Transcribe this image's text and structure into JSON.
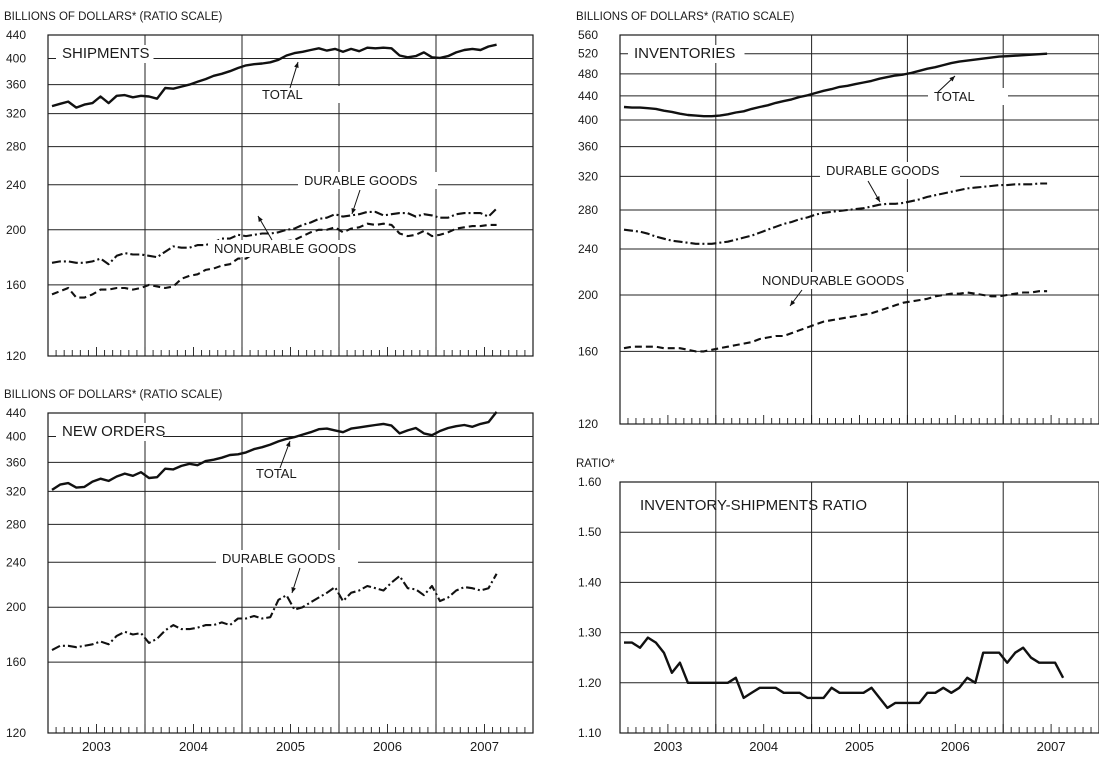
{
  "chart_data": [
    {
      "id": "shipments",
      "type": "line",
      "header": "BILLIONS OF DOLLARS* (RATIO SCALE)",
      "title": "SHIPMENTS",
      "scale": "log",
      "ylim": [
        120,
        440
      ],
      "yticks": [
        "440",
        "400",
        "360",
        "320",
        "280",
        "240",
        "200",
        "160",
        "120"
      ],
      "grid": true,
      "series": [
        {
          "name": "TOTAL",
          "style": "solid",
          "start_month": 1,
          "values": [
            330,
            333,
            336,
            328,
            332,
            334,
            343,
            334,
            344,
            345,
            342,
            344,
            343,
            340,
            355,
            354,
            357,
            360,
            364,
            368,
            373,
            376,
            380,
            385,
            389,
            391,
            392,
            394,
            398,
            405,
            409,
            411,
            414,
            417,
            413,
            416,
            411,
            416,
            412,
            418,
            417,
            418,
            417,
            405,
            402,
            404,
            410,
            402,
            401,
            404,
            410,
            414,
            416,
            414,
            420,
            423
          ]
        },
        {
          "name": "DURABLE GOODS",
          "style": "dashdot",
          "start_month": 1,
          "values": [
            175,
            176,
            176,
            175,
            175,
            176,
            178,
            174,
            180,
            182,
            181,
            181,
            180,
            179,
            183,
            187,
            186,
            186,
            188,
            188,
            190,
            193,
            193,
            196,
            195,
            196,
            197,
            197,
            198,
            200,
            201,
            204,
            206,
            209,
            210,
            213,
            211,
            212,
            213,
            215,
            215,
            212,
            213,
            214,
            214,
            211,
            213,
            212,
            210,
            210,
            213,
            214,
            214,
            214,
            211,
            218
          ]
        },
        {
          "name": "NONDURABLE GOODS",
          "style": "dashed",
          "start_month": 1,
          "values": [
            154,
            156,
            158,
            152,
            152,
            154,
            157,
            157,
            158,
            158,
            157,
            158,
            160,
            159,
            158,
            159,
            164,
            166,
            167,
            170,
            171,
            173,
            174,
            178,
            178,
            182,
            184,
            186,
            188,
            191,
            192,
            195,
            198,
            200,
            200,
            202,
            198,
            201,
            202,
            205,
            204,
            205,
            204,
            197,
            195,
            196,
            199,
            195,
            196,
            198,
            201,
            202,
            203,
            203,
            204,
            204
          ]
        }
      ],
      "annotations": [
        "TOTAL",
        "DURABLE GOODS",
        "NONDURABLE GOODS"
      ]
    },
    {
      "id": "new_orders",
      "type": "line",
      "header": "BILLIONS OF DOLLARS* (RATIO SCALE)",
      "title": "NEW ORDERS",
      "scale": "log",
      "ylim": [
        120,
        440
      ],
      "yticks": [
        "440",
        "400",
        "360",
        "320",
        "280",
        "240",
        "200",
        "160",
        "120"
      ],
      "grid": true,
      "series": [
        {
          "name": "TOTAL",
          "style": "solid",
          "start_month": 1,
          "values": [
            322,
            329,
            331,
            325,
            326,
            333,
            337,
            334,
            340,
            344,
            341,
            346,
            338,
            339,
            351,
            350,
            355,
            358,
            356,
            362,
            364,
            367,
            371,
            372,
            375,
            380,
            383,
            387,
            392,
            396,
            399,
            403,
            407,
            412,
            413,
            410,
            407,
            413,
            415,
            417,
            419,
            421,
            418,
            405,
            410,
            414,
            405,
            402,
            409,
            414,
            417,
            419,
            416,
            421,
            424,
            442
          ]
        },
        {
          "name": "DURABLE GOODS",
          "style": "dashdot",
          "start_month": 1,
          "values": [
            168,
            171,
            171,
            170,
            171,
            172,
            174,
            172,
            178,
            181,
            179,
            180,
            173,
            176,
            182,
            186,
            183,
            183,
            184,
            186,
            186,
            188,
            186,
            191,
            191,
            193,
            191,
            192,
            206,
            210,
            198,
            200,
            204,
            208,
            212,
            217,
            205,
            212,
            214,
            218,
            216,
            214,
            221,
            227,
            216,
            215,
            210,
            218,
            205,
            208,
            214,
            217,
            216,
            214,
            216,
            229
          ]
        }
      ],
      "annotations": [
        "TOTAL",
        "DURABLE GOODS"
      ]
    },
    {
      "id": "inventories",
      "type": "line",
      "header": "BILLIONS OF DOLLARS* (RATIO SCALE)",
      "title": "INVENTORIES",
      "scale": "log",
      "ylim": [
        120,
        560
      ],
      "yticks": [
        "560",
        "520",
        "480",
        "440",
        "400",
        "360",
        "320",
        "280",
        "240",
        "200",
        "160",
        "120"
      ],
      "grid": true,
      "series": [
        {
          "name": "TOTAL",
          "style": "solid",
          "start_month": 1,
          "values": [
            421,
            420,
            420,
            419,
            418,
            415,
            413,
            410,
            408,
            407,
            406,
            406,
            407,
            409,
            412,
            414,
            418,
            421,
            424,
            428,
            431,
            434,
            438,
            441,
            445,
            449,
            452,
            456,
            458,
            461,
            464,
            467,
            471,
            474,
            477,
            479,
            482,
            486,
            490,
            493,
            497,
            501,
            504,
            506,
            508,
            510,
            512,
            514,
            515,
            516,
            517,
            518,
            519,
            520
          ]
        },
        {
          "name": "DURABLE GOODS",
          "style": "dashdot",
          "start_month": 1,
          "values": [
            259,
            258,
            257,
            255,
            252,
            250,
            248,
            247,
            246,
            245,
            245,
            245,
            246,
            247,
            249,
            251,
            253,
            256,
            259,
            262,
            265,
            267,
            270,
            272,
            275,
            277,
            278,
            279,
            280,
            281,
            282,
            284,
            286,
            287,
            287,
            288,
            290,
            292,
            295,
            297,
            299,
            301,
            303,
            305,
            306,
            307,
            308,
            309,
            309,
            310,
            310,
            310,
            311,
            311
          ]
        },
        {
          "name": "NONDURABLE GOODS",
          "style": "dashed",
          "start_month": 1,
          "values": [
            162,
            163,
            163,
            163,
            163,
            162,
            162,
            162,
            161,
            160,
            160,
            161,
            162,
            163,
            164,
            165,
            166,
            168,
            169,
            170,
            170,
            172,
            174,
            176,
            178,
            180,
            181,
            182,
            183,
            184,
            185,
            186,
            188,
            190,
            192,
            194,
            195,
            196,
            197,
            199,
            200,
            201,
            201,
            202,
            201,
            200,
            199,
            199,
            200,
            201,
            202,
            202,
            203,
            203
          ]
        }
      ],
      "annotations": [
        "TOTAL",
        "DURABLE GOODS",
        "NONDURABLE GOODS"
      ]
    },
    {
      "id": "ratio",
      "type": "line",
      "header": "RATIO*",
      "title": "INVENTORY-SHIPMENTS RATIO",
      "scale": "linear",
      "ylim": [
        1.1,
        1.6
      ],
      "yticks": [
        "1.60",
        "1.50",
        "1.40",
        "1.30",
        "1.20",
        "1.10"
      ],
      "grid": true,
      "series": [
        {
          "name": "",
          "style": "solid",
          "start_month": 1,
          "values": [
            1.28,
            1.28,
            1.27,
            1.29,
            1.28,
            1.26,
            1.22,
            1.24,
            1.2,
            1.2,
            1.2,
            1.2,
            1.2,
            1.2,
            1.21,
            1.17,
            1.18,
            1.19,
            1.19,
            1.19,
            1.18,
            1.18,
            1.18,
            1.17,
            1.17,
            1.17,
            1.19,
            1.18,
            1.18,
            1.18,
            1.18,
            1.19,
            1.17,
            1.15,
            1.16,
            1.16,
            1.16,
            1.16,
            1.18,
            1.18,
            1.19,
            1.18,
            1.19,
            1.21,
            1.2,
            1.26,
            1.26,
            1.26,
            1.24,
            1.26,
            1.27,
            1.25,
            1.24,
            1.24,
            1.24,
            1.21
          ]
        }
      ],
      "annotations": []
    }
  ],
  "x_axis": {
    "years": [
      "2003",
      "2004",
      "2005",
      "2006",
      "2007"
    ],
    "months_shown": 60
  }
}
